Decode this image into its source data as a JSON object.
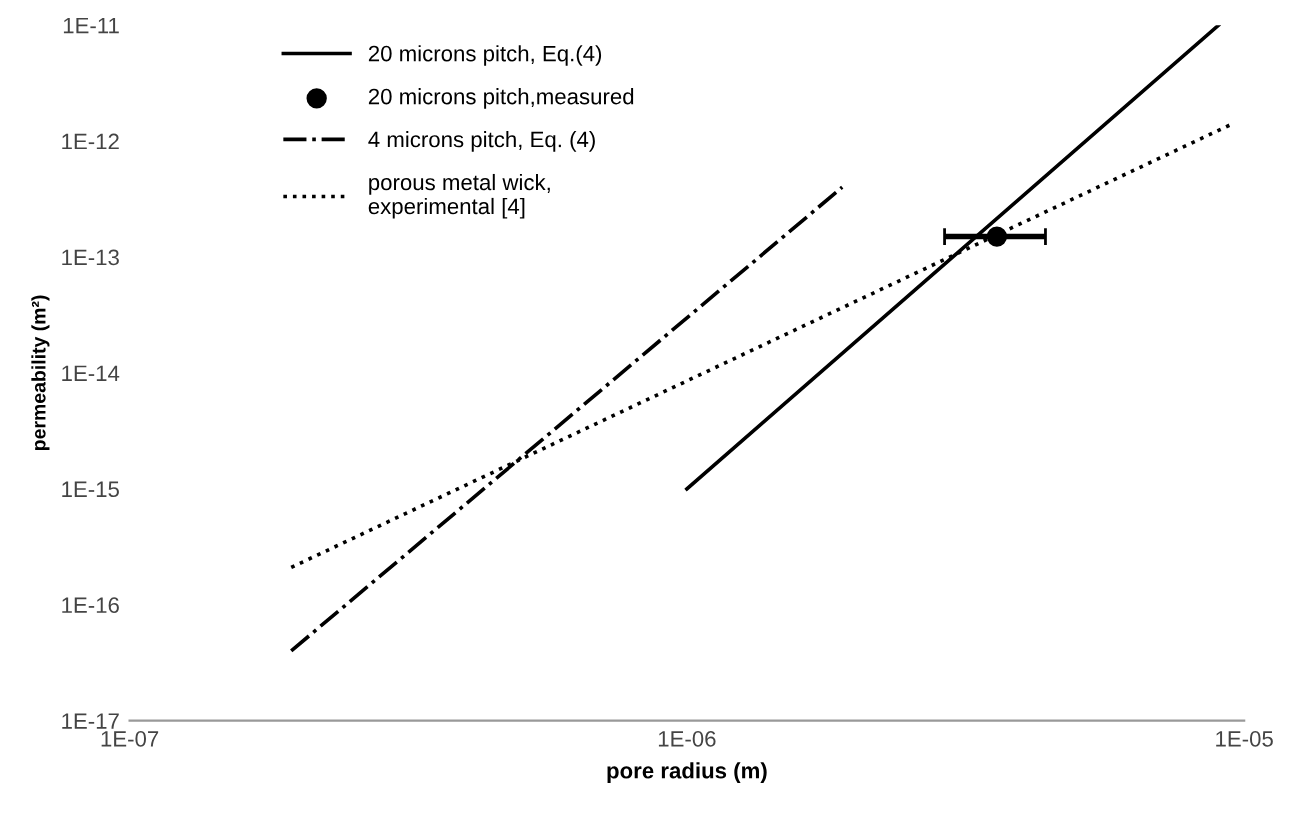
{
  "chart_data": {
    "type": "line",
    "xlabel": "pore radius (m)",
    "ylabel": "permeability (m²)",
    "log": "xy",
    "xlim": [
      1e-07,
      1e-05
    ],
    "ylim": [
      1e-17,
      1e-11
    ],
    "xticks": [
      {
        "value": 1e-07,
        "label": "1E-07"
      },
      {
        "value": 1e-06,
        "label": "1E-06"
      },
      {
        "value": 1e-05,
        "label": "1E-05"
      }
    ],
    "yticks": [
      {
        "value": 1e-17,
        "label": "1E-17"
      },
      {
        "value": 1e-16,
        "label": "1E-16"
      },
      {
        "value": 1e-15,
        "label": "1E-15"
      },
      {
        "value": 1e-14,
        "label": "1E-14"
      },
      {
        "value": 1e-13,
        "label": "1E-13"
      },
      {
        "value": 1e-12,
        "label": "1E-12"
      },
      {
        "value": 1e-11,
        "label": "1E-11"
      }
    ],
    "legend": "top left",
    "grid": false,
    "series": [
      {
        "name": "20 microns pitch, Eq.(4)",
        "line_style": "solid",
        "color": "#000000",
        "x": [
          1e-06,
          9e-06
        ],
        "values": [
          1e-15,
          1e-11
        ]
      },
      {
        "name": "20 microns pitch,measured",
        "type": "scatter",
        "marker": "circle",
        "color": "#000000",
        "x": [
          3.6e-06
        ],
        "values": [
          1.5e-13
        ],
        "xerrors": [
          [
            2.9e-06,
            4.4e-06
          ]
        ]
      },
      {
        "name": "4 microns pitch, Eq. (4)",
        "line_style": "dashdot",
        "color": "#000000",
        "x": [
          1.95e-07,
          1.9e-06
        ],
        "values": [
          4e-17,
          4e-13
        ]
      },
      {
        "name": "porous metal wick,\nexperimental [4]",
        "line_style": "dotted",
        "color": "#000000",
        "x": [
          1.95e-07,
          9.5e-06
        ],
        "values": [
          2.1e-16,
          1.4e-12
        ]
      }
    ]
  }
}
